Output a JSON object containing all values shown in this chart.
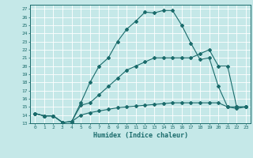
{
  "xlabel": "Humidex (Indice chaleur)",
  "background_color": "#c5e8e8",
  "grid_color": "#ffffff",
  "line_color": "#1a6b6b",
  "xlim": [
    -0.5,
    23.5
  ],
  "ylim": [
    13,
    27.5
  ],
  "xticks": [
    0,
    1,
    2,
    3,
    4,
    5,
    6,
    7,
    8,
    9,
    10,
    11,
    12,
    13,
    14,
    15,
    16,
    17,
    18,
    19,
    20,
    21,
    22,
    23
  ],
  "yticks": [
    13,
    14,
    15,
    16,
    17,
    18,
    19,
    20,
    21,
    22,
    23,
    24,
    25,
    26,
    27
  ],
  "series": [
    {
      "x": [
        0,
        1,
        2,
        3,
        4,
        5,
        6,
        7,
        8,
        9,
        10,
        11,
        12,
        13,
        14,
        15,
        16,
        17,
        18,
        19,
        20,
        21,
        22,
        23
      ],
      "y": [
        14.2,
        13.9,
        13.9,
        13.1,
        13.2,
        15.5,
        18.0,
        20.0,
        21.0,
        23.0,
        24.5,
        25.5,
        26.6,
        26.5,
        26.8,
        26.8,
        25.0,
        22.8,
        20.8,
        21.0,
        17.5,
        15.0,
        15.0,
        15.0
      ]
    },
    {
      "x": [
        0,
        1,
        2,
        3,
        4,
        5,
        6,
        7,
        8,
        9,
        10,
        11,
        12,
        13,
        14,
        15,
        16,
        17,
        18,
        19,
        20,
        21,
        22,
        23
      ],
      "y": [
        14.2,
        13.9,
        13.9,
        13.1,
        13.2,
        15.2,
        15.5,
        16.5,
        17.5,
        18.5,
        19.5,
        20.0,
        20.5,
        21.0,
        21.0,
        21.0,
        21.0,
        21.0,
        21.5,
        22.0,
        20.0,
        20.0,
        15.0,
        15.0
      ]
    },
    {
      "x": [
        0,
        1,
        2,
        3,
        4,
        5,
        6,
        7,
        8,
        9,
        10,
        11,
        12,
        13,
        14,
        15,
        16,
        17,
        18,
        19,
        20,
        21,
        22,
        23
      ],
      "y": [
        14.2,
        13.9,
        13.9,
        13.1,
        13.2,
        14.0,
        14.3,
        14.5,
        14.7,
        14.9,
        15.0,
        15.1,
        15.2,
        15.3,
        15.4,
        15.5,
        15.5,
        15.5,
        15.5,
        15.5,
        15.5,
        15.0,
        14.8,
        15.0
      ]
    }
  ]
}
